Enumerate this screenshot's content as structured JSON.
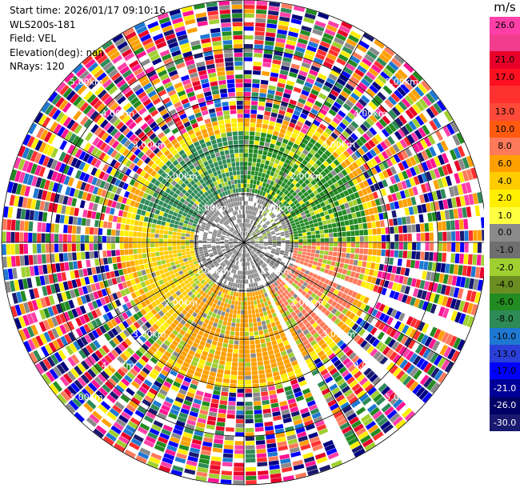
{
  "header": {
    "start_time": "Start time: 2026/01/17 09:10:16",
    "instrument": "WLS200s-181",
    "field": "Field: VEL",
    "elevation": "Elevation(deg): nan",
    "nrays": "NRays: 120"
  },
  "colorbar": {
    "unit": "m/s",
    "levels": [
      {
        "label": "26.0",
        "color": "#ff3fa8",
        "text": "#000000"
      },
      {
        "label": "",
        "color": "#f23c8e",
        "text": "#000000"
      },
      {
        "label": "21.0",
        "color": "#e8002a",
        "text": "#000000"
      },
      {
        "label": "17.0",
        "color": "#ff1020",
        "text": "#000000"
      },
      {
        "label": "",
        "color": "#ff3030",
        "text": "#000000"
      },
      {
        "label": "13.0",
        "color": "#ff4a3a",
        "text": "#000000"
      },
      {
        "label": "10.0",
        "color": "#ff5a10",
        "text": "#000000"
      },
      {
        "label": "8.0",
        "color": "#ff7a5a",
        "text": "#000000"
      },
      {
        "label": "6.0",
        "color": "#ffa000",
        "text": "#000000"
      },
      {
        "label": "4.0",
        "color": "#ffcc00",
        "text": "#000000"
      },
      {
        "label": "2.0",
        "color": "#ffee00",
        "text": "#000000"
      },
      {
        "label": "1.0",
        "color": "#ffff40",
        "text": "#000000"
      },
      {
        "label": "0.0",
        "color": "#8a8a8a",
        "text": "#000000"
      },
      {
        "label": "-1.0",
        "color": "#6f6f6f",
        "text": "#000000"
      },
      {
        "label": "-2.0",
        "color": "#a0d030",
        "text": "#000000"
      },
      {
        "label": "-4.0",
        "color": "#6b8e23",
        "text": "#000000"
      },
      {
        "label": "-6.0",
        "color": "#228b22",
        "text": "#000000"
      },
      {
        "label": "-8.0",
        "color": "#2e8b57",
        "text": "#000000"
      },
      {
        "label": "-10.0",
        "color": "#1e78d2",
        "text": "#000000"
      },
      {
        "label": "-13.0",
        "color": "#2a40d8",
        "text": "#000000"
      },
      {
        "label": "-17.0",
        "color": "#0000ff",
        "text": "#000000"
      },
      {
        "label": "-21.0",
        "color": "#000099",
        "text": "#ffffff"
      },
      {
        "label": "-26.0",
        "color": "#000066",
        "text": "#ffffff"
      },
      {
        "label": "-30.0",
        "color": "#191970",
        "text": "#ffffff"
      }
    ]
  },
  "chart_data": {
    "type": "heatmap",
    "projection": "polar-ppi",
    "field": "VEL",
    "units": "m/s",
    "nrays": 120,
    "max_range_km": 5.0,
    "range_rings_km": [
      1.0,
      2.0,
      3.0,
      4.0,
      5.0
    ],
    "ring_labels": [
      "1.00km",
      "2.00km",
      "3.00km",
      "4.00km",
      "5.00km"
    ],
    "missing_azimuths_deg": [
      [
        110,
        114
      ],
      [
        130,
        134
      ],
      [
        152,
        155
      ]
    ],
    "velocity_field_by_sector": [
      {
        "az_from_deg": 0,
        "az_to_deg": 30,
        "near_km": [
          0.3,
          1.0,
          "0.0"
        ],
        "mid_km": [
          1.0,
          2.5,
          "-6.0"
        ],
        "far_km": [
          2.5,
          5.0,
          "mixed"
        ]
      },
      {
        "az_from_deg": 30,
        "az_to_deg": 90,
        "near_km": [
          0.3,
          1.0,
          "-2.0"
        ],
        "mid_km": [
          1.0,
          2.8,
          "-6.0"
        ],
        "far_km": [
          2.8,
          5.0,
          "mixed"
        ]
      },
      {
        "az_from_deg": 90,
        "az_to_deg": 150,
        "near_km": [
          0.3,
          1.0,
          "-1.0"
        ],
        "mid_km": [
          1.0,
          2.8,
          "8.0"
        ],
        "far_km": [
          2.8,
          5.0,
          "mixed"
        ]
      },
      {
        "az_from_deg": 150,
        "az_to_deg": 220,
        "near_km": [
          0.3,
          1.0,
          "0.0"
        ],
        "mid_km": [
          1.0,
          3.0,
          "6.0"
        ],
        "far_km": [
          3.0,
          5.0,
          "mixed"
        ]
      },
      {
        "az_from_deg": 220,
        "az_to_deg": 280,
        "near_km": [
          0.3,
          1.0,
          "-1.0"
        ],
        "mid_km": [
          1.0,
          2.5,
          "4.0"
        ],
        "far_km": [
          2.5,
          5.0,
          "mixed"
        ]
      },
      {
        "az_from_deg": 280,
        "az_to_deg": 360,
        "near_km": [
          0.3,
          1.0,
          "0.0"
        ],
        "mid_km": [
          1.0,
          2.5,
          "-8.0"
        ],
        "far_km": [
          2.5,
          5.0,
          "mixed"
        ]
      }
    ]
  }
}
